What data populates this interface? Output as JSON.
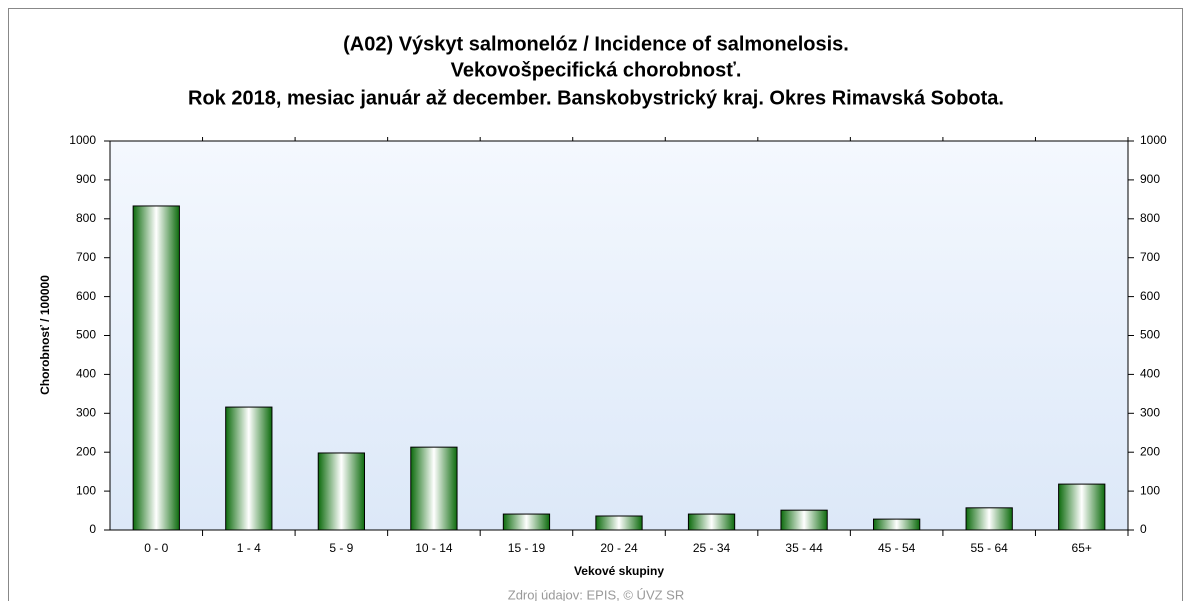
{
  "chart_data": {
    "type": "bar",
    "title": "(A02) Výskyt salmonelóz / Incidence of salmonelosis.",
    "subtitle": [
      "Vekovošpecifická chorobnosť.",
      "Rok 2018, mesiac január až december. Banskobystrický kraj. Okres Rimavská Sobota."
    ],
    "x_label": "Vekové skupiny",
    "y_label": "Chorobnosť / 100000",
    "source": "Zdroj údajov: EPIS, © ÚVZ SR",
    "categories": [
      "0 - 0",
      "1 - 4",
      "5 - 9",
      "10 - 14",
      "15 - 19",
      "20 - 24",
      "25 - 34",
      "35 - 44",
      "45 - 54",
      "55 - 64",
      "65+"
    ],
    "values": [
      833,
      316,
      198,
      213,
      41,
      36,
      41,
      51,
      28,
      57,
      118
    ],
    "color": "#1e8c1e",
    "ylim": [
      0,
      1000
    ],
    "yticks": [
      0,
      100,
      200,
      300,
      400,
      500,
      600,
      700,
      800,
      900,
      1000
    ],
    "y2lim": [
      0,
      1000
    ],
    "y2ticks": [
      0,
      100,
      200,
      300,
      400,
      500,
      600,
      700,
      800,
      900,
      1000
    ]
  }
}
